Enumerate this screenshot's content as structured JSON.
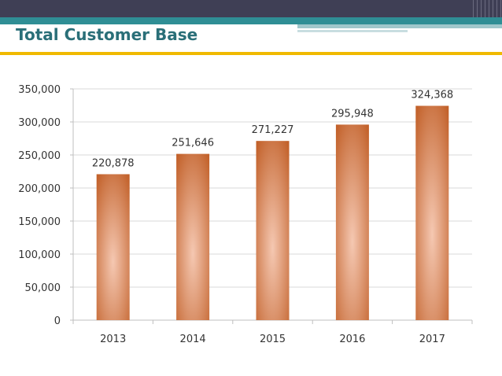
{
  "header": {
    "title": "Total Customer Base"
  },
  "colors": {
    "bar_edge": "#c2612a",
    "bar_center": "#f5c8b2",
    "title": "#2a6f78",
    "band_dark": "#3f3f55",
    "band_teal": "#2f8e95",
    "gold_rule": "#f0b900"
  },
  "chart_data": {
    "type": "bar",
    "title": "",
    "xlabel": "",
    "ylabel": "",
    "categories": [
      "2013",
      "2014",
      "2015",
      "2016",
      "2017"
    ],
    "values": [
      220878,
      251646,
      271227,
      295948,
      324368
    ],
    "value_labels": [
      "220,878",
      "251,646",
      "271,227",
      "295,948",
      "324,368"
    ],
    "ylim": [
      0,
      350000
    ],
    "yticks": [
      0,
      50000,
      100000,
      150000,
      200000,
      250000,
      300000,
      350000
    ],
    "ytick_labels": [
      "0",
      "50,000",
      "100,000",
      "150,000",
      "200,000",
      "250,000",
      "300,000",
      "350,000"
    ],
    "grid": true,
    "legend": "none"
  }
}
